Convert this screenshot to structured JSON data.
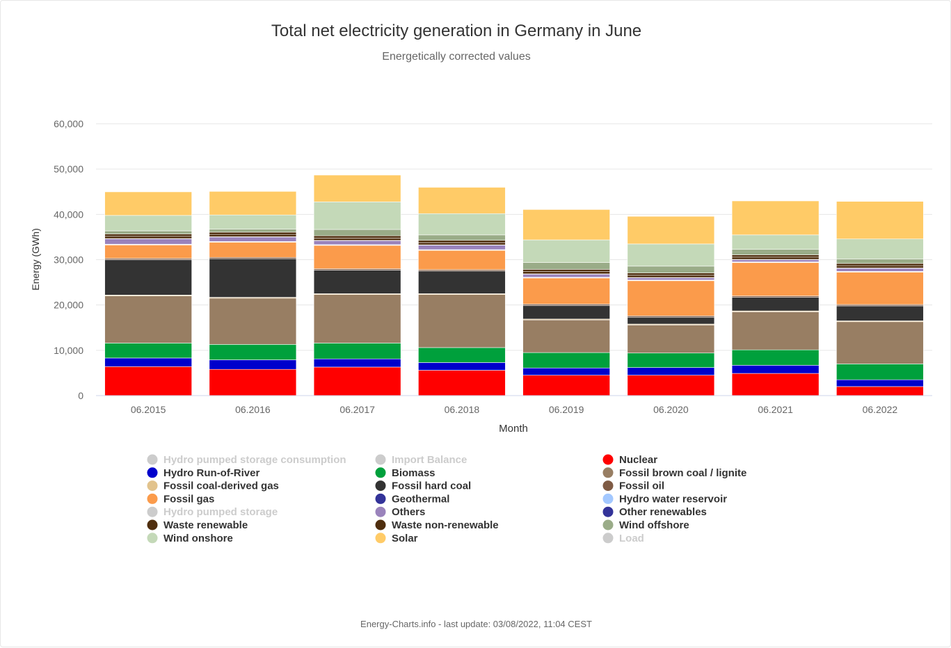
{
  "footer": "Energy-Charts.info - last update: 03/08/2022, 11:04 CEST",
  "chart_data": {
    "type": "bar",
    "stacked": true,
    "title": "Total net electricity generation in Germany in June",
    "subtitle": "Energetically corrected values",
    "xlabel": "Month",
    "ylabel": "Energy (GWh)",
    "ylim": [
      0,
      60000
    ],
    "yticks": [
      0,
      10000,
      20000,
      30000,
      40000,
      50000,
      60000
    ],
    "ytick_labels": [
      "0",
      "10,000",
      "20,000",
      "30,000",
      "40,000",
      "50,000",
      "60,000"
    ],
    "grid": true,
    "legend_position": "bottom",
    "categories": [
      "06.2015",
      "06.2016",
      "06.2017",
      "06.2018",
      "06.2019",
      "06.2020",
      "06.2021",
      "06.2022"
    ],
    "series": [
      {
        "name": "Nuclear",
        "color": "#ff0000",
        "values": [
          6400,
          5800,
          6300,
          5600,
          4500,
          4500,
          4900,
          2000
        ]
      },
      {
        "name": "Hydro Run-of-River",
        "color": "#0000cc",
        "values": [
          1900,
          2100,
          1800,
          1700,
          1600,
          1700,
          1800,
          1500
        ]
      },
      {
        "name": "Biomass",
        "color": "#00a03c",
        "values": [
          3300,
          3400,
          3500,
          3300,
          3400,
          3200,
          3400,
          3500
        ]
      },
      {
        "name": "Fossil brown coal / lignite",
        "color": "#987e63",
        "values": [
          10400,
          10200,
          10700,
          11700,
          7200,
          6200,
          8400,
          9300
        ]
      },
      {
        "name": "Fossil coal-derived gas",
        "color": "#e2c38d",
        "values": [
          200,
          200,
          200,
          200,
          200,
          200,
          200,
          200
        ]
      },
      {
        "name": "Fossil hard coal",
        "color": "#333333",
        "values": [
          7800,
          8500,
          5200,
          5000,
          3000,
          1500,
          3000,
          3300
        ]
      },
      {
        "name": "Fossil oil",
        "color": "#7f5b44",
        "values": [
          300,
          300,
          300,
          300,
          300,
          300,
          300,
          300
        ]
      },
      {
        "name": "Fossil gas",
        "color": "#fb9b4b",
        "values": [
          3000,
          3400,
          5200,
          4300,
          5800,
          7800,
          7400,
          7200
        ]
      },
      {
        "name": "Geothermal",
        "color": "#333399",
        "values": [
          20,
          20,
          20,
          20,
          20,
          20,
          20,
          20
        ]
      },
      {
        "name": "Hydro water reservoir",
        "color": "#a3c8ff",
        "values": [
          100,
          100,
          100,
          100,
          100,
          100,
          100,
          100
        ]
      },
      {
        "name": "Others",
        "color": "#9a83bc",
        "values": [
          1200,
          1000,
          900,
          1000,
          700,
          500,
          500,
          700
        ]
      },
      {
        "name": "Other renewables",
        "color": "#333399",
        "values": [
          50,
          50,
          50,
          50,
          50,
          50,
          50,
          50
        ]
      },
      {
        "name": "Waste renewable",
        "color": "#4f2e0e",
        "values": [
          500,
          500,
          500,
          500,
          500,
          500,
          500,
          500
        ]
      },
      {
        "name": "Waste non-renewable",
        "color": "#4f2e0e",
        "values": [
          500,
          500,
          500,
          500,
          500,
          500,
          500,
          500
        ]
      },
      {
        "name": "Wind offshore",
        "color": "#9aac88",
        "values": [
          700,
          700,
          1400,
          1200,
          1500,
          1500,
          1200,
          1000
        ]
      },
      {
        "name": "Wind onshore",
        "color": "#c4d9b8",
        "values": [
          3400,
          3100,
          6100,
          4700,
          5000,
          4900,
          3200,
          4400
        ]
      },
      {
        "name": "Solar",
        "color": "#ffcb67",
        "values": [
          5200,
          5200,
          5900,
          5800,
          6700,
          6100,
          7500,
          8300
        ]
      }
    ],
    "legend": [
      {
        "name": "Hydro pumped storage consumption",
        "color": "#cccccc",
        "visible": false
      },
      {
        "name": "Import Balance",
        "color": "#cccccc",
        "visible": false
      },
      {
        "name": "Nuclear",
        "color": "#ff0000",
        "visible": true
      },
      {
        "name": "Hydro Run-of-River",
        "color": "#0000cc",
        "visible": true
      },
      {
        "name": "Biomass",
        "color": "#00a03c",
        "visible": true
      },
      {
        "name": "Fossil brown coal / lignite",
        "color": "#987e63",
        "visible": true
      },
      {
        "name": "Fossil coal-derived gas",
        "color": "#e2c38d",
        "visible": true
      },
      {
        "name": "Fossil hard coal",
        "color": "#333333",
        "visible": true
      },
      {
        "name": "Fossil oil",
        "color": "#7f5b44",
        "visible": true
      },
      {
        "name": "Fossil gas",
        "color": "#fb9b4b",
        "visible": true
      },
      {
        "name": "Geothermal",
        "color": "#333399",
        "visible": true
      },
      {
        "name": "Hydro water reservoir",
        "color": "#a3c8ff",
        "visible": true
      },
      {
        "name": "Hydro pumped storage",
        "color": "#cccccc",
        "visible": false
      },
      {
        "name": "Others",
        "color": "#9a83bc",
        "visible": true
      },
      {
        "name": "Other renewables",
        "color": "#333399",
        "visible": true
      },
      {
        "name": "Waste renewable",
        "color": "#4f2e0e",
        "visible": true
      },
      {
        "name": "Waste non-renewable",
        "color": "#4f2e0e",
        "visible": true
      },
      {
        "name": "Wind offshore",
        "color": "#9aac88",
        "visible": true
      },
      {
        "name": "Wind onshore",
        "color": "#c4d9b8",
        "visible": true
      },
      {
        "name": "Solar",
        "color": "#ffcb67",
        "visible": true
      },
      {
        "name": "Load",
        "color": "#cccccc",
        "visible": false
      }
    ]
  }
}
